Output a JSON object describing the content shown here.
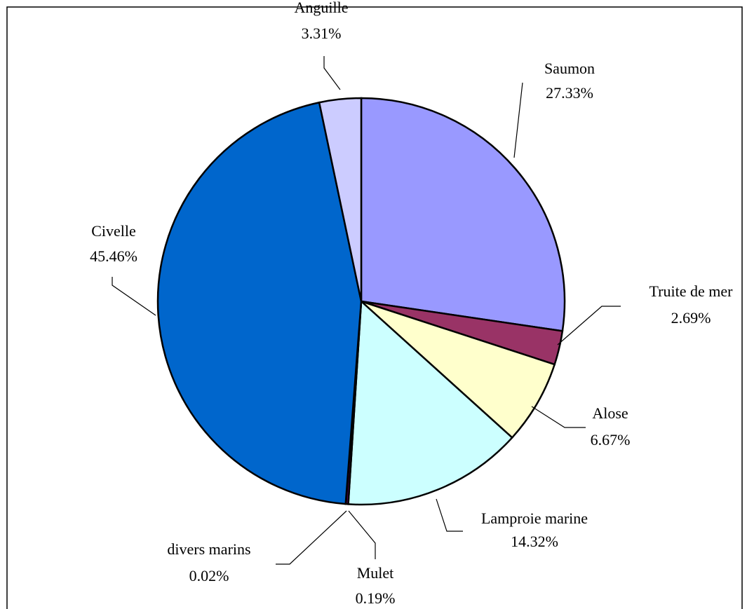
{
  "chart_data": {
    "type": "pie",
    "categories": [
      "Saumon",
      "Truite de mer",
      "Alose",
      "Lamproie marine",
      "Mulet",
      "divers marins",
      "Civelle",
      "Anguille"
    ],
    "values": [
      27.33,
      2.69,
      6.67,
      14.32,
      0.19,
      0.02,
      45.46,
      3.31
    ],
    "value_labels": [
      "27.33%",
      "2.69%",
      "6.67%",
      "14.32%",
      "0.19%",
      "0.02%",
      "45.46%",
      "3.31%"
    ],
    "colors": [
      "#9999ff",
      "#993366",
      "#ffffcc",
      "#ccffff",
      "#660066",
      "#ff8080",
      "#0066cc",
      "#ccccff"
    ]
  }
}
